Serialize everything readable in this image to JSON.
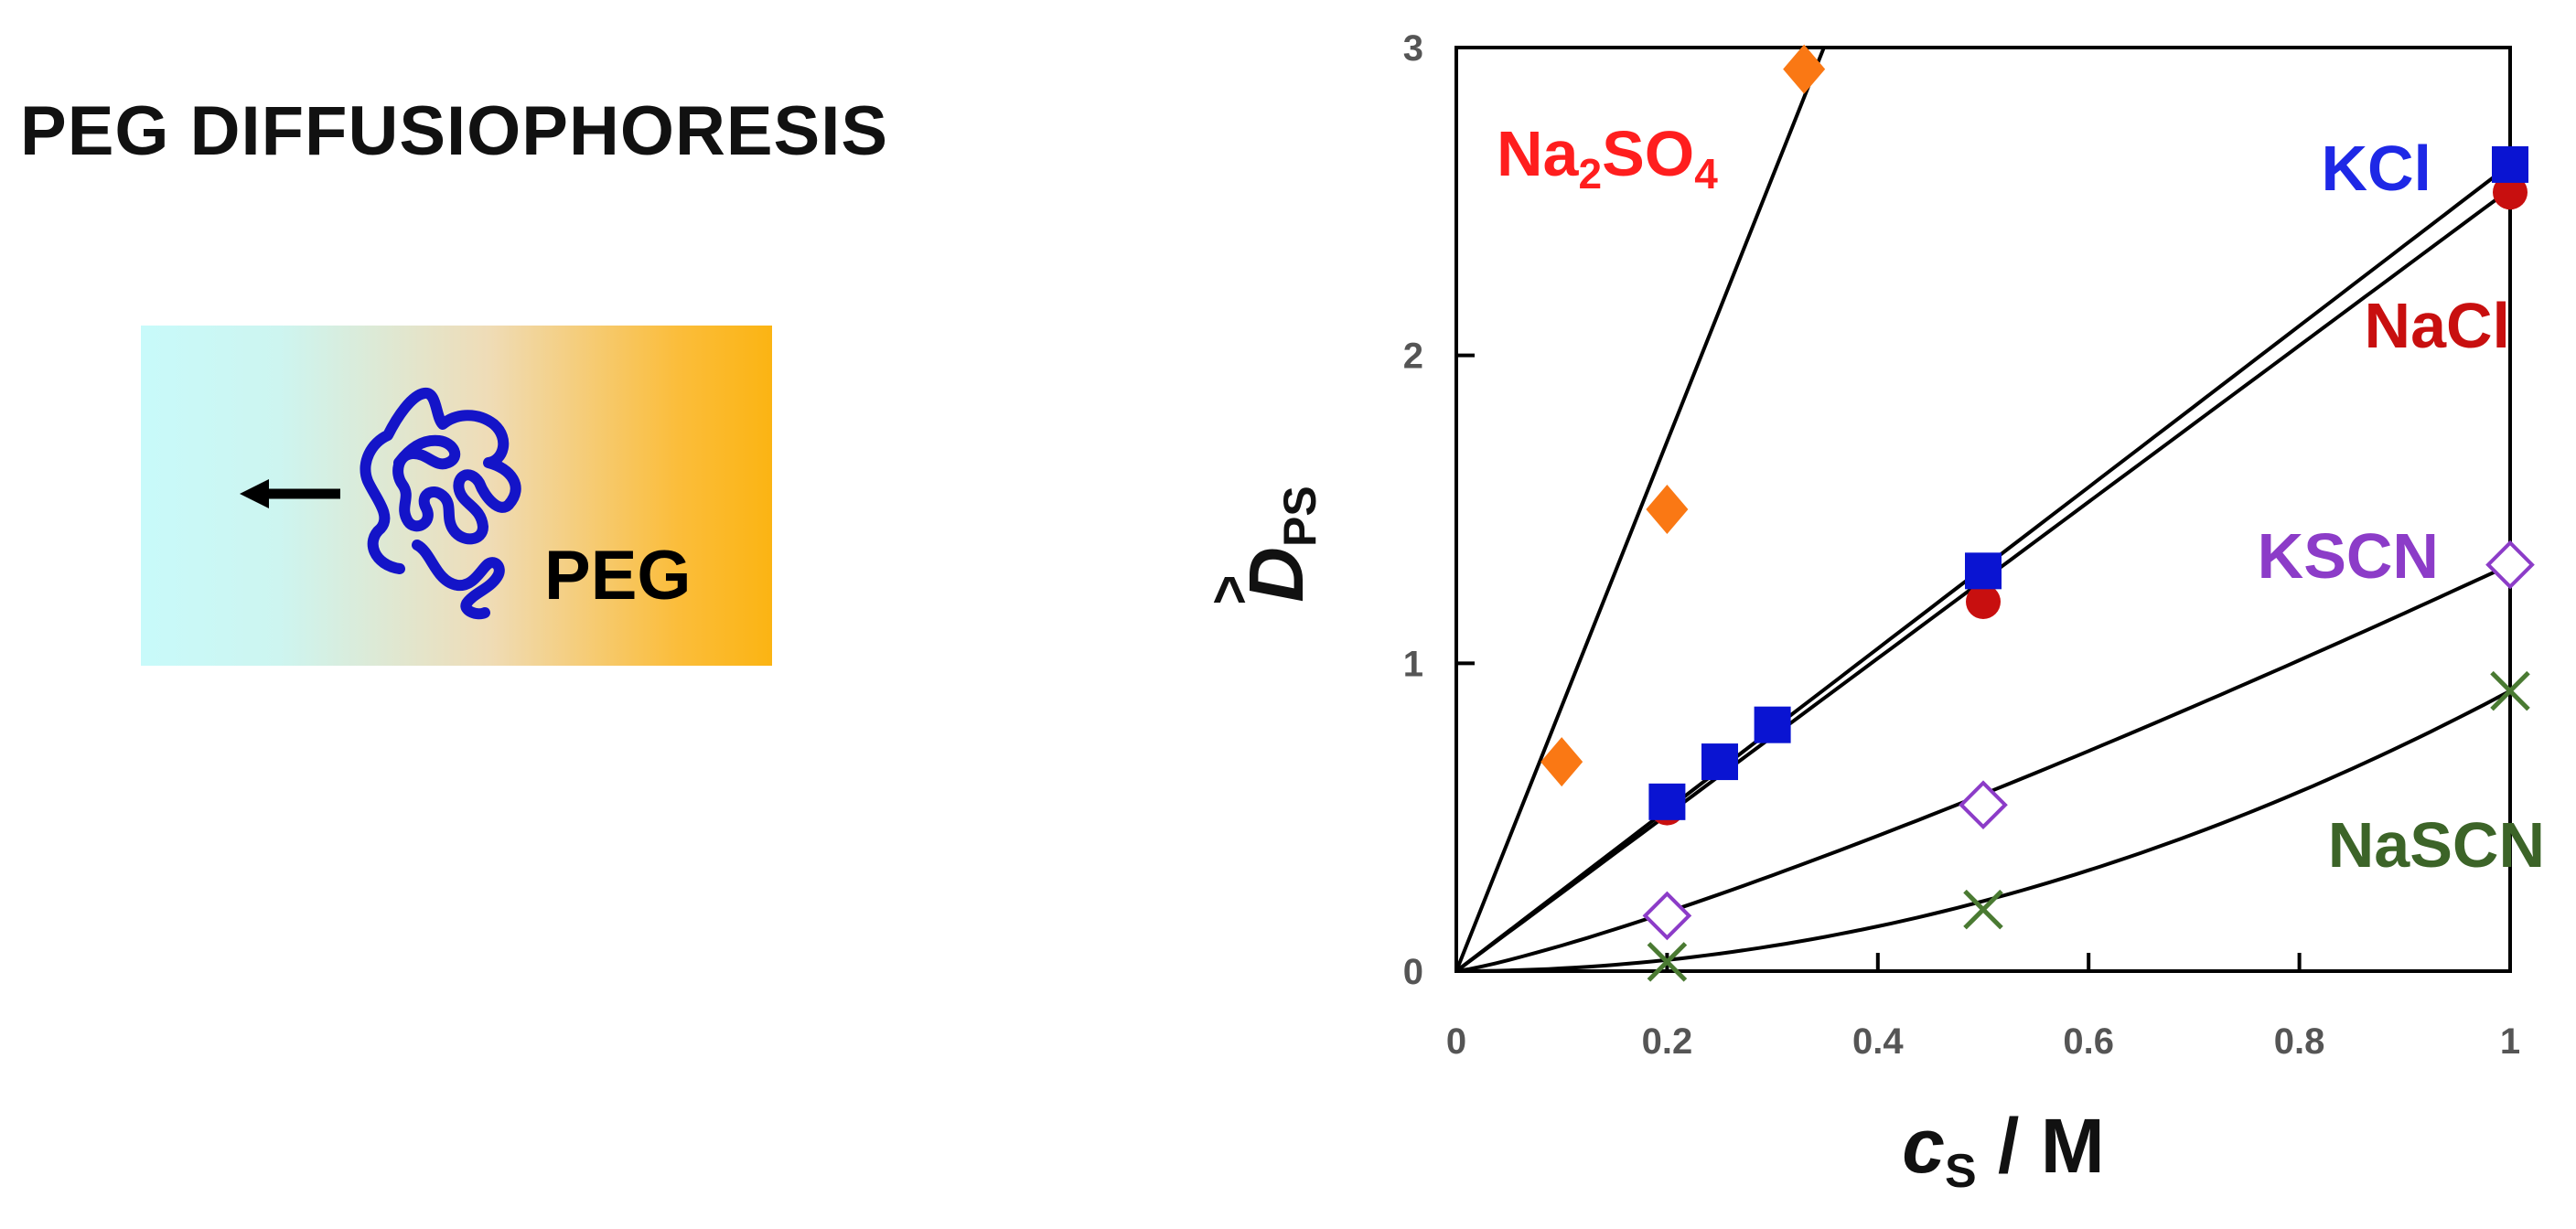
{
  "left_panel": {
    "title": "PEG DIFFUSIOPHORESIS",
    "polymer_label": "PEG"
  },
  "colors": {
    "gradient_left": "#c8fafa",
    "gradient_right": "#fbb413",
    "polymer": "#1414c8",
    "arrow": "#000000"
  },
  "chart_data": {
    "type": "scatter",
    "xlabel_main": "c",
    "xlabel_sub": "S",
    "xlabel_unit": " / M",
    "ylabel_main": "D",
    "ylabel_sub": "PS",
    "ylabel_hat": "^",
    "xlim": [
      0,
      1
    ],
    "ylim": [
      0,
      3
    ],
    "x_ticks": [
      0,
      0.2,
      0.4,
      0.6,
      0.8,
      1
    ],
    "x_tick_labels": [
      "0",
      "0.2",
      "0.4",
      "0.6",
      "0.8",
      "1"
    ],
    "y_ticks": [
      0,
      1,
      2,
      3
    ],
    "y_tick_labels": [
      "0",
      "1",
      "2",
      "3"
    ],
    "grid": false,
    "series": [
      {
        "name": "Na2SO4",
        "label_main": "Na",
        "label_sub1": "2",
        "label_mid": "SO",
        "label_sub2": "4",
        "marker": "diamond",
        "color": "#fa7814",
        "label_color": "#ff1e1e",
        "x": [
          0.1,
          0.2,
          0.33
        ],
        "y": [
          0.68,
          1.5,
          2.93
        ],
        "fit": {
          "kind": "line",
          "slope": 8.6,
          "power": 1
        }
      },
      {
        "name": "KCl",
        "label_main": "KCl",
        "marker": "square",
        "color": "#0a14d2",
        "label_color": "#1e28e6",
        "x": [
          0.2,
          0.25,
          0.3,
          0.5,
          1.0
        ],
        "y": [
          0.55,
          0.68,
          0.8,
          1.3,
          2.62
        ],
        "fit": {
          "kind": "line",
          "slope": 2.62,
          "power": 1
        }
      },
      {
        "name": "NaCl",
        "label_main": "NaCl",
        "marker": "circle",
        "color": "#c80f0f",
        "label_color": "#c80f0f",
        "x": [
          0.2,
          0.5,
          1.0
        ],
        "y": [
          0.53,
          1.2,
          2.53
        ],
        "fit": {
          "kind": "line",
          "slope": 2.54,
          "power": 1
        }
      },
      {
        "name": "KSCN",
        "label_main": "KSCN",
        "marker": "open-diamond",
        "color": "#8c3cc8",
        "label_color": "#8c3cc8",
        "x": [
          0.2,
          0.5,
          1.0
        ],
        "y": [
          0.18,
          0.54,
          1.32
        ],
        "fit": {
          "kind": "curve",
          "slope": 1.32,
          "power": 1.2
        }
      },
      {
        "name": "NaSCN",
        "label_main": "NaSCN",
        "marker": "x",
        "color": "#4a7a32",
        "label_color": "#3c6428",
        "x": [
          0.2,
          0.5,
          1.0
        ],
        "y": [
          0.03,
          0.2,
          0.91
        ],
        "fit": {
          "kind": "curve",
          "slope": 0.91,
          "power": 2.0
        }
      }
    ]
  }
}
